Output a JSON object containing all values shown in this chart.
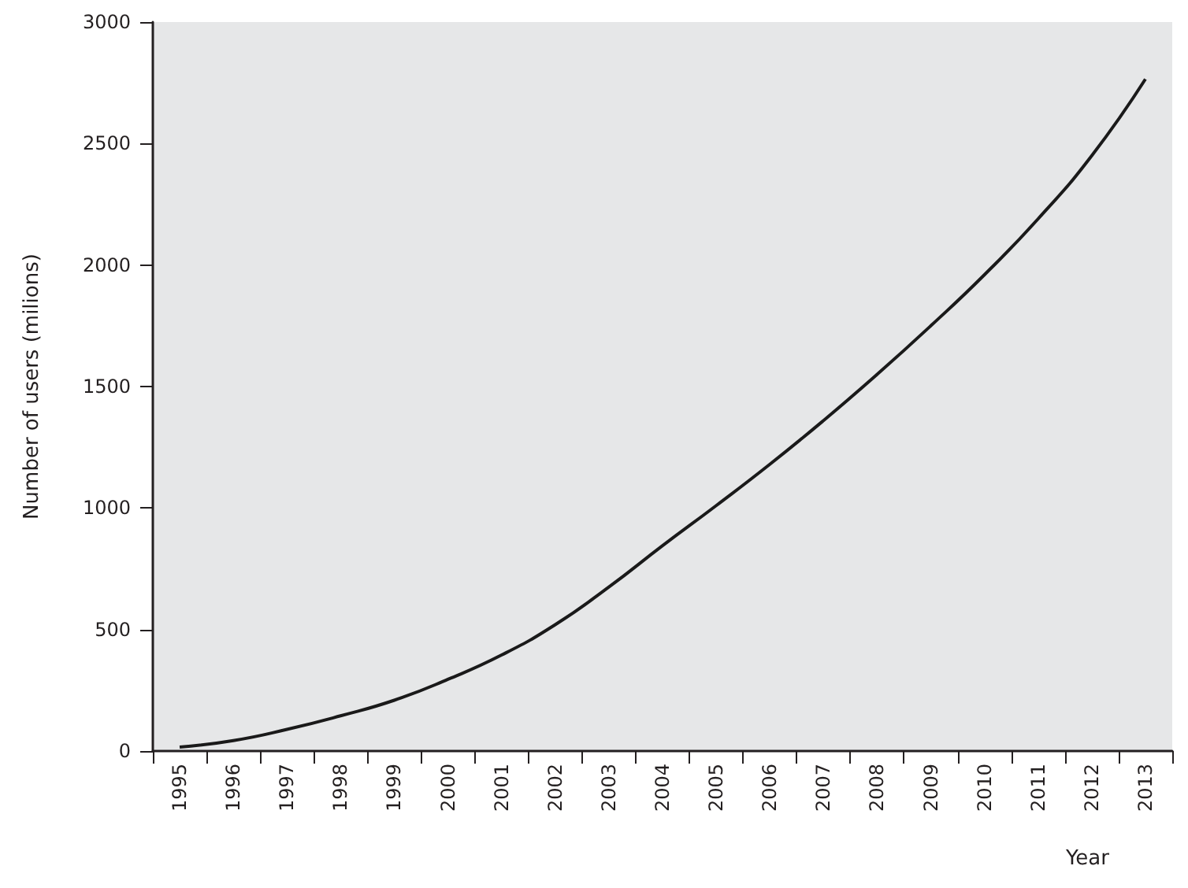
{
  "chart_data": {
    "type": "line",
    "xlabel": "Year",
    "ylabel": "Number of users (milions)",
    "categories": [
      "1995",
      "1996",
      "1997",
      "1998",
      "1999",
      "2000",
      "2001",
      "2002",
      "2003",
      "2004",
      "2005",
      "2006",
      "2007",
      "2008",
      "2009",
      "2010",
      "2011",
      "2012",
      "2013"
    ],
    "series": [
      {
        "color": "#1a1a1a",
        "values": [
          16,
          43,
          89,
          145,
          209,
          295,
          395,
          520,
          675,
          845,
          1010,
          1180,
          1360,
          1550,
          1750,
          1960,
          2190,
          2450,
          2765
        ]
      }
    ],
    "ylim": [
      0,
      3000
    ],
    "yticks": [
      0,
      500,
      1000,
      1500,
      2000,
      2500,
      3000
    ],
    "grid": false,
    "marker": "none",
    "line_style": "solid"
  }
}
